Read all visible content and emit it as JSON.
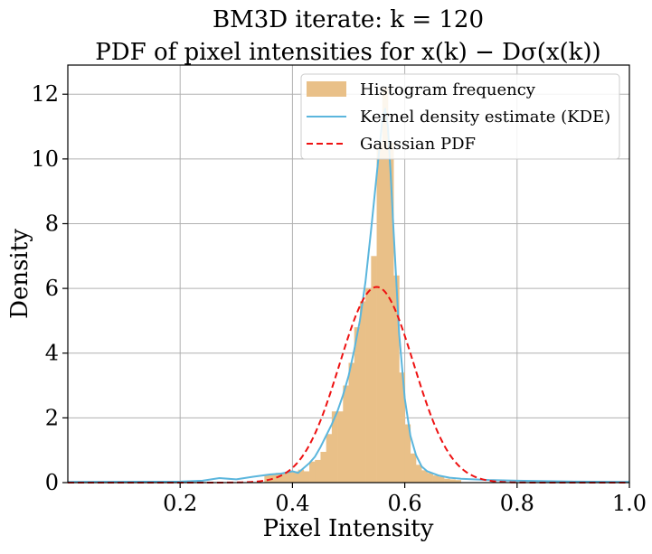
{
  "chart_data": {
    "type": "bar",
    "title_line1": "BM3D iterate: k = 120",
    "title_line2": "PDF of pixel intensities for x(k) − Dσ(x(k))",
    "xlabel": "Pixel Intensity",
    "ylabel": "Density",
    "xlim": [
      0.0,
      1.0
    ],
    "ylim": [
      0,
      12.9
    ],
    "xticks": [
      0.2,
      0.4,
      0.6,
      0.8,
      1.0
    ],
    "yticks": [
      0,
      2,
      4,
      6,
      8,
      10,
      12
    ],
    "xtick_labels": [
      "0.2",
      "0.4",
      "0.6",
      "0.8",
      "1.0"
    ],
    "ytick_labels": [
      "0",
      "2",
      "4",
      "6",
      "8",
      "10",
      "12"
    ],
    "grid": true,
    "legend_position": "top-right",
    "legend": [
      {
        "label": "Histogram frequency",
        "kind": "patch",
        "color": "#E9C088"
      },
      {
        "label": "Kernel density estimate (KDE)",
        "kind": "line",
        "color": "#5BB6DD"
      },
      {
        "label": "Gaussian PDF",
        "kind": "dashed",
        "color": "#EE1111"
      }
    ],
    "histogram": {
      "bin_edges": [
        0.35,
        0.36,
        0.37,
        0.38,
        0.39,
        0.4,
        0.41,
        0.42,
        0.43,
        0.44,
        0.45,
        0.46,
        0.47,
        0.48,
        0.49,
        0.5,
        0.51,
        0.52,
        0.53,
        0.54,
        0.55,
        0.56,
        0.57,
        0.58,
        0.59,
        0.6,
        0.61,
        0.62,
        0.63,
        0.64,
        0.65,
        0.66,
        0.67,
        0.68,
        0.69,
        0.7
      ],
      "density": [
        0.25,
        0.28,
        0.3,
        0.3,
        0.32,
        0.35,
        0.4,
        0.35,
        0.65,
        0.7,
        0.95,
        1.5,
        2.2,
        2.2,
        3.0,
        3.7,
        4.8,
        5.6,
        6.0,
        7.0,
        10.4,
        12.2,
        10.5,
        6.4,
        3.4,
        1.8,
        0.9,
        0.55,
        0.38,
        0.3,
        0.22,
        0.18,
        0.12,
        0.1,
        0.08
      ]
    },
    "series": [
      {
        "name": "Kernel density estimate (KDE)",
        "x": [
          0.0,
          0.2,
          0.24,
          0.27,
          0.3,
          0.33,
          0.36,
          0.38,
          0.4,
          0.41,
          0.42,
          0.43,
          0.44,
          0.45,
          0.46,
          0.47,
          0.48,
          0.49,
          0.5,
          0.51,
          0.52,
          0.53,
          0.54,
          0.55,
          0.56,
          0.565,
          0.57,
          0.575,
          0.58,
          0.59,
          0.6,
          0.61,
          0.62,
          0.63,
          0.64,
          0.66,
          0.68,
          0.7,
          0.75,
          0.8,
          0.9,
          1.0
        ],
        "y": [
          0.02,
          0.03,
          0.06,
          0.14,
          0.1,
          0.18,
          0.25,
          0.28,
          0.35,
          0.3,
          0.45,
          0.6,
          0.8,
          1.1,
          1.45,
          1.8,
          2.2,
          2.7,
          3.3,
          4.1,
          5.0,
          6.2,
          7.8,
          9.5,
          11.2,
          11.55,
          11.0,
          9.5,
          7.8,
          4.6,
          2.6,
          1.45,
          0.85,
          0.5,
          0.35,
          0.22,
          0.15,
          0.12,
          0.08,
          0.06,
          0.03,
          0.02
        ]
      },
      {
        "name": "Gaussian PDF",
        "gaussian": {
          "mean": 0.55,
          "std": 0.066
        }
      }
    ]
  }
}
